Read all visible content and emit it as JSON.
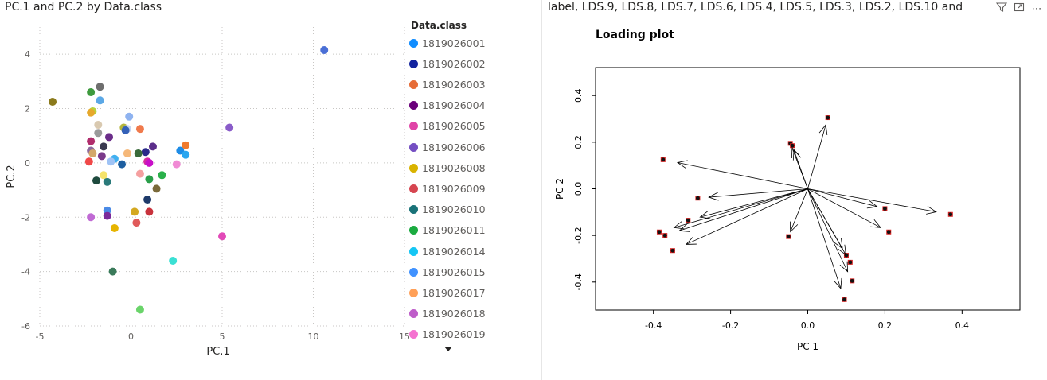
{
  "left_panel": {
    "title": "PC.1 and PC.2 by Data.class",
    "legend_title": "Data.class"
  },
  "right_panel": {
    "title": "label, LDS.9, LDS.8, LDS.7, LDS.6, LDS.4, LDS.5, LDS.3, LDS.2, LDS.10 and",
    "icons": [
      "filter-icon",
      "focus-mode-icon",
      "more-options-icon"
    ]
  },
  "chart_data": [
    {
      "type": "scatter",
      "title": "PC.1 and PC.2 by Data.class",
      "xlabel": "PC.1",
      "ylabel": "PC.2",
      "xlim": [
        -5,
        15
      ],
      "ylim": [
        -6,
        5
      ],
      "xticks": [
        -5,
        0,
        5,
        10,
        15
      ],
      "yticks": [
        -6,
        -4,
        -2,
        0,
        2,
        4
      ],
      "grid": true,
      "legend_position": "right",
      "legend": [
        {
          "name": "1819026001",
          "color": "#118DFF"
        },
        {
          "name": "1819026002",
          "color": "#12239E"
        },
        {
          "name": "1819026003",
          "color": "#E66C37"
        },
        {
          "name": "1819026004",
          "color": "#6B007B"
        },
        {
          "name": "1819026005",
          "color": "#E044A7"
        },
        {
          "name": "1819026006",
          "color": "#744EC2"
        },
        {
          "name": "1819026008",
          "color": "#D9B300"
        },
        {
          "name": "1819026009",
          "color": "#D64550"
        },
        {
          "name": "1819026010",
          "color": "#197278"
        },
        {
          "name": "1819026011",
          "color": "#1AAB40"
        },
        {
          "name": "1819026014",
          "color": "#15C6F4"
        },
        {
          "name": "1819026015",
          "color": "#4092FF"
        },
        {
          "name": "1819026017",
          "color": "#FFA058"
        },
        {
          "name": "1819026018",
          "color": "#BE5DC9"
        },
        {
          "name": "1819026019",
          "color": "#F472D0"
        }
      ],
      "points": [
        {
          "x": 10.6,
          "y": 4.15,
          "color": "#4A6FD6"
        },
        {
          "x": -4.3,
          "y": 2.25,
          "color": "#8B7A1C"
        },
        {
          "x": -1.7,
          "y": 2.8,
          "color": "#6E6E6E"
        },
        {
          "x": -2.2,
          "y": 2.6,
          "color": "#3E9A3E"
        },
        {
          "x": -1.7,
          "y": 2.3,
          "color": "#5BA8E6"
        },
        {
          "x": -2.1,
          "y": 1.9,
          "color": "#B8D23A"
        },
        {
          "x": -2.2,
          "y": 1.85,
          "color": "#E6A82C"
        },
        {
          "x": -0.1,
          "y": 1.7,
          "color": "#8FB3F0"
        },
        {
          "x": -1.8,
          "y": 1.4,
          "color": "#D9C9B0"
        },
        {
          "x": -0.4,
          "y": 1.3,
          "color": "#B5B53C"
        },
        {
          "x": -0.2,
          "y": 1.25,
          "color": "#C9D6F0"
        },
        {
          "x": -0.3,
          "y": 1.2,
          "color": "#3461B8"
        },
        {
          "x": 0.5,
          "y": 1.25,
          "color": "#F07A4C"
        },
        {
          "x": 5.4,
          "y": 1.3,
          "color": "#8A5CC9"
        },
        {
          "x": -1.8,
          "y": 1.1,
          "color": "#9A9A9A"
        },
        {
          "x": -1.2,
          "y": 0.95,
          "color": "#6B2D8A"
        },
        {
          "x": -2.2,
          "y": 0.8,
          "color": "#B02D6C"
        },
        {
          "x": -1.5,
          "y": 0.6,
          "color": "#3A3A50"
        },
        {
          "x": 3.0,
          "y": 0.65,
          "color": "#F07A2C"
        },
        {
          "x": 1.2,
          "y": 0.6,
          "color": "#5B2D8A"
        },
        {
          "x": -2.2,
          "y": 0.45,
          "color": "#8C6A9E"
        },
        {
          "x": 2.7,
          "y": 0.45,
          "color": "#1E8CE6"
        },
        {
          "x": 0.8,
          "y": 0.4,
          "color": "#2A2A8A"
        },
        {
          "x": 0.4,
          "y": 0.35,
          "color": "#3A6B3A"
        },
        {
          "x": -0.2,
          "y": 0.35,
          "color": "#F5B87A"
        },
        {
          "x": 3.0,
          "y": 0.3,
          "color": "#2AA6F0"
        },
        {
          "x": -2.1,
          "y": 0.35,
          "color": "#D4A86A"
        },
        {
          "x": -1.6,
          "y": 0.25,
          "color": "#7A3A8A"
        },
        {
          "x": -0.9,
          "y": 0.15,
          "color": "#40B0F0"
        },
        {
          "x": -1.1,
          "y": 0.05,
          "color": "#9FC3F5"
        },
        {
          "x": -2.3,
          "y": 0.05,
          "color": "#F04848"
        },
        {
          "x": -0.5,
          "y": -0.05,
          "color": "#1E5FA0"
        },
        {
          "x": 0.9,
          "y": 0.05,
          "color": "#D62D9E"
        },
        {
          "x": 1.0,
          "y": 0.0,
          "color": "#C80FC8"
        },
        {
          "x": 2.5,
          "y": -0.05,
          "color": "#F08AD4"
        },
        {
          "x": -1.5,
          "y": -0.45,
          "color": "#F5E36A"
        },
        {
          "x": 0.5,
          "y": -0.4,
          "color": "#F5A0A0"
        },
        {
          "x": 1.7,
          "y": -0.45,
          "color": "#2AB04A"
        },
        {
          "x": 1.0,
          "y": -0.6,
          "color": "#2A9E4A"
        },
        {
          "x": -1.9,
          "y": -0.65,
          "color": "#1E4A3E"
        },
        {
          "x": -1.3,
          "y": -0.7,
          "color": "#2A7A7A"
        },
        {
          "x": 1.4,
          "y": -0.95,
          "color": "#7A6A3A"
        },
        {
          "x": 0.9,
          "y": -1.35,
          "color": "#1E3A6A"
        },
        {
          "x": -1.3,
          "y": -1.75,
          "color": "#4A8AE6"
        },
        {
          "x": 0.2,
          "y": -1.8,
          "color": "#D4A820"
        },
        {
          "x": 1.0,
          "y": -1.8,
          "color": "#C8323C"
        },
        {
          "x": -1.3,
          "y": -1.95,
          "color": "#7A2A9A"
        },
        {
          "x": -2.2,
          "y": -2.0,
          "color": "#C06AD4"
        },
        {
          "x": 0.3,
          "y": -2.2,
          "color": "#E05A5A"
        },
        {
          "x": -0.9,
          "y": -2.4,
          "color": "#E6B400"
        },
        {
          "x": 5.0,
          "y": -2.7,
          "color": "#E24AB8"
        },
        {
          "x": 2.3,
          "y": -3.6,
          "color": "#3AE0D4"
        },
        {
          "x": -1.0,
          "y": -4.0,
          "color": "#3A7A5A"
        },
        {
          "x": 0.5,
          "y": -5.4,
          "color": "#6AD46A"
        }
      ]
    },
    {
      "type": "biplot",
      "title": "Loading plot",
      "xlabel": "PC  1",
      "ylabel": "PC  2",
      "xlim": [
        -0.55,
        0.55
      ],
      "ylim": [
        -0.52,
        0.52
      ],
      "xticks": [
        -0.4,
        -0.2,
        0.0,
        0.2,
        0.4
      ],
      "yticks": [
        -0.4,
        -0.2,
        0.0,
        0.2,
        0.4
      ],
      "grid": false,
      "vectors": [
        {
          "x": 0.052,
          "y": 0.305
        },
        {
          "x": -0.045,
          "y": 0.195
        },
        {
          "x": -0.04,
          "y": 0.185
        },
        {
          "x": -0.375,
          "y": 0.125
        },
        {
          "x": -0.285,
          "y": -0.04
        },
        {
          "x": -0.31,
          "y": -0.135
        },
        {
          "x": -0.385,
          "y": -0.185
        },
        {
          "x": -0.37,
          "y": -0.2
        },
        {
          "x": -0.35,
          "y": -0.265
        },
        {
          "x": -0.05,
          "y": -0.205
        },
        {
          "x": 0.2,
          "y": -0.085
        },
        {
          "x": 0.37,
          "y": -0.11
        },
        {
          "x": 0.21,
          "y": -0.185
        },
        {
          "x": 0.1,
          "y": -0.285
        },
        {
          "x": 0.11,
          "y": -0.315
        },
        {
          "x": 0.115,
          "y": -0.395
        },
        {
          "x": 0.095,
          "y": -0.475
        }
      ]
    }
  ]
}
